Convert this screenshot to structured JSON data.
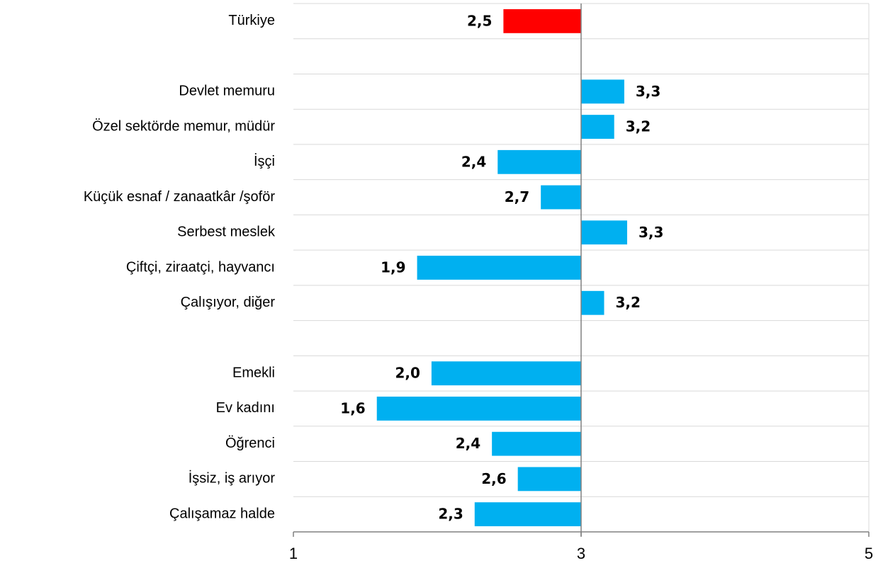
{
  "chart_data": {
    "type": "bar",
    "orientation": "horizontal",
    "categories": [
      "Türkiye",
      null,
      "Devlet memuru",
      "Özel sektörde memur, müdür",
      "İşçi",
      "Küçük esnaf / zanaatkâr /şoför",
      "Serbest meslek",
      "Çiftçi, ziraatçi, hayvancı",
      "Çalışıyor, diğer",
      null,
      "Emekli",
      "Ev kadını",
      "Öğrenci",
      "İşsiz, iş arıyor",
      "Çalışamaz halde"
    ],
    "values": [
      2.46,
      null,
      3.3,
      3.23,
      2.42,
      2.72,
      3.32,
      1.86,
      3.16,
      null,
      1.96,
      1.58,
      2.38,
      2.56,
      2.26
    ],
    "value_labels": [
      "2,5",
      null,
      "3,3",
      "3,2",
      "2,4",
      "2,7",
      "3,3",
      "1,9",
      "3,2",
      null,
      "2,0",
      "1,6",
      "2,4",
      "2,6",
      "2,3"
    ],
    "colors": [
      "#ff0000",
      null,
      "#00b0f0",
      "#00b0f0",
      "#00b0f0",
      "#00b0f0",
      "#00b0f0",
      "#00b0f0",
      "#00b0f0",
      null,
      "#00b0f0",
      "#00b0f0",
      "#00b0f0",
      "#00b0f0",
      "#00b0f0"
    ],
    "base": 3,
    "xlim": [
      1,
      5
    ],
    "xticks": [
      1,
      3,
      5
    ],
    "grid": true
  }
}
